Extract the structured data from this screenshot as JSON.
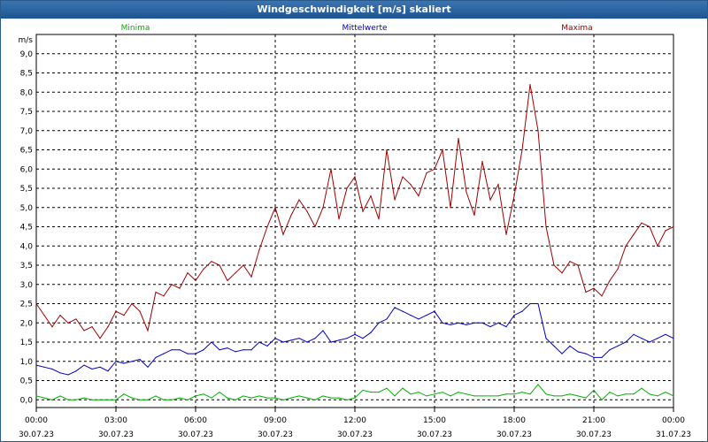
{
  "window": {
    "title": "Windgeschwindigkeit [m/s] skaliert"
  },
  "chart_data": {
    "type": "line",
    "title": "Windgeschwindigkeit [m/s] skaliert",
    "ylabel": "m/s",
    "xlabel": "",
    "ylim": [
      -0.2,
      9.5
    ],
    "xlim": [
      0,
      24
    ],
    "grid": true,
    "yticks": [
      "0,0",
      "0,5",
      "1,0",
      "1,5",
      "2,0",
      "2,5",
      "3,0",
      "3,5",
      "4,0",
      "4,5",
      "5,0",
      "5,5",
      "6,0",
      "6,5",
      "7,0",
      "7,5",
      "8,0",
      "8,5",
      "9,0"
    ],
    "ytick_values": [
      0,
      0.5,
      1,
      1.5,
      2,
      2.5,
      3,
      3.5,
      4,
      4.5,
      5,
      5.5,
      6,
      6.5,
      7,
      7.5,
      8,
      8.5,
      9
    ],
    "xticks": [
      {
        "x": 0,
        "time": "00:00",
        "date": "30.07.23"
      },
      {
        "x": 3,
        "time": "03:00",
        "date": "30.07.23"
      },
      {
        "x": 6,
        "time": "06:00",
        "date": "30.07.23"
      },
      {
        "x": 9,
        "time": "09:00",
        "date": "30.07.23"
      },
      {
        "x": 12,
        "time": "12:00",
        "date": "30.07.23"
      },
      {
        "x": 15,
        "time": "15:00",
        "date": "30.07.23"
      },
      {
        "x": 18,
        "time": "18:00",
        "date": "30.07.23"
      },
      {
        "x": 21,
        "time": "21:00",
        "date": "30.07.23"
      },
      {
        "x": 24,
        "time": "00:00",
        "date": "31.07.23"
      }
    ],
    "series": [
      {
        "name": "Minima",
        "color": "#00b000",
        "x": [
          0,
          0.3,
          0.6,
          0.9,
          1.2,
          1.5,
          1.8,
          2.1,
          2.4,
          2.7,
          3.0,
          3.3,
          3.6,
          3.9,
          4.2,
          4.5,
          4.8,
          5.1,
          5.4,
          5.7,
          6.0,
          6.3,
          6.6,
          6.9,
          7.2,
          7.5,
          7.8,
          8.1,
          8.4,
          8.7,
          9.0,
          9.3,
          9.6,
          9.9,
          10.2,
          10.5,
          10.8,
          11.1,
          11.4,
          11.7,
          12.0,
          12.3,
          12.6,
          12.9,
          13.2,
          13.5,
          13.8,
          14.1,
          14.4,
          14.7,
          15.0,
          15.3,
          15.6,
          15.9,
          16.2,
          16.5,
          16.8,
          17.1,
          17.4,
          17.7,
          18.0,
          18.3,
          18.6,
          18.9,
          19.2,
          19.5,
          19.8,
          20.1,
          20.4,
          20.7,
          21.0,
          21.3,
          21.6,
          21.9,
          22.2,
          22.5,
          22.8,
          23.1,
          23.4,
          23.7,
          24.0
        ],
        "values": [
          0.1,
          0.05,
          0.0,
          0.1,
          0.0,
          0.0,
          0.05,
          0.0,
          0.0,
          0.0,
          0.0,
          0.15,
          0.05,
          0.0,
          0.0,
          0.1,
          0.0,
          0.0,
          0.05,
          0.0,
          0.1,
          0.15,
          0.05,
          0.2,
          0.05,
          0.0,
          0.1,
          0.05,
          0.1,
          0.05,
          0.05,
          0.0,
          0.05,
          0.1,
          0.05,
          0.0,
          0.1,
          0.05,
          0.05,
          0.0,
          0.05,
          0.25,
          0.2,
          0.2,
          0.3,
          0.1,
          0.3,
          0.15,
          0.2,
          0.1,
          0.15,
          0.2,
          0.1,
          0.2,
          0.15,
          0.1,
          0.1,
          0.1,
          0.1,
          0.15,
          0.15,
          0.2,
          0.15,
          0.4,
          0.15,
          0.1,
          0.1,
          0.15,
          0.1,
          0.05,
          0.25,
          0.0,
          0.2,
          0.1,
          0.15,
          0.15,
          0.3,
          0.15,
          0.1,
          0.2,
          0.1
        ]
      },
      {
        "name": "Mittelwerte",
        "color": "#0000c0",
        "x": [
          0,
          0.3,
          0.6,
          0.9,
          1.2,
          1.5,
          1.8,
          2.1,
          2.4,
          2.7,
          3.0,
          3.3,
          3.6,
          3.9,
          4.2,
          4.5,
          4.8,
          5.1,
          5.4,
          5.7,
          6.0,
          6.3,
          6.6,
          6.9,
          7.2,
          7.5,
          7.8,
          8.1,
          8.4,
          8.7,
          9.0,
          9.3,
          9.6,
          9.9,
          10.2,
          10.5,
          10.8,
          11.1,
          11.4,
          11.7,
          12.0,
          12.3,
          12.6,
          12.9,
          13.2,
          13.5,
          13.8,
          14.1,
          14.4,
          14.7,
          15.0,
          15.3,
          15.6,
          15.9,
          16.2,
          16.5,
          16.8,
          17.1,
          17.4,
          17.7,
          18.0,
          18.3,
          18.6,
          18.9,
          19.2,
          19.5,
          19.8,
          20.1,
          20.4,
          20.7,
          21.0,
          21.3,
          21.6,
          21.9,
          22.2,
          22.5,
          22.8,
          23.1,
          23.4,
          23.7,
          24.0
        ],
        "values": [
          0.9,
          0.85,
          0.8,
          0.7,
          0.65,
          0.75,
          0.9,
          0.8,
          0.85,
          0.75,
          1.0,
          0.95,
          1.0,
          1.05,
          0.85,
          1.1,
          1.2,
          1.3,
          1.3,
          1.2,
          1.2,
          1.3,
          1.5,
          1.3,
          1.35,
          1.25,
          1.3,
          1.3,
          1.5,
          1.4,
          1.6,
          1.5,
          1.55,
          1.6,
          1.5,
          1.6,
          1.8,
          1.5,
          1.55,
          1.6,
          1.7,
          1.6,
          1.75,
          2.0,
          2.1,
          2.4,
          2.3,
          2.2,
          2.1,
          2.2,
          2.3,
          2.0,
          1.95,
          2.0,
          1.95,
          2.0,
          2.0,
          1.9,
          2.0,
          1.9,
          2.2,
          2.3,
          2.5,
          2.5,
          1.6,
          1.4,
          1.2,
          1.4,
          1.25,
          1.2,
          1.1,
          1.1,
          1.3,
          1.4,
          1.5,
          1.7,
          1.6,
          1.5,
          1.6,
          1.7,
          1.6
        ]
      },
      {
        "name": "Maxima",
        "color": "#a00000",
        "x": [
          0,
          0.3,
          0.6,
          0.9,
          1.2,
          1.5,
          1.8,
          2.1,
          2.4,
          2.7,
          3.0,
          3.3,
          3.6,
          3.9,
          4.2,
          4.5,
          4.8,
          5.1,
          5.4,
          5.7,
          6.0,
          6.3,
          6.6,
          6.9,
          7.2,
          7.5,
          7.8,
          8.1,
          8.4,
          8.7,
          9.0,
          9.3,
          9.6,
          9.9,
          10.2,
          10.5,
          10.8,
          11.1,
          11.4,
          11.7,
          12.0,
          12.3,
          12.6,
          12.9,
          13.2,
          13.5,
          13.8,
          14.1,
          14.4,
          14.7,
          15.0,
          15.3,
          15.6,
          15.9,
          16.2,
          16.5,
          16.8,
          17.1,
          17.4,
          17.7,
          18.0,
          18.3,
          18.6,
          18.9,
          19.2,
          19.5,
          19.8,
          20.1,
          20.4,
          20.7,
          21.0,
          21.3,
          21.6,
          21.9,
          22.2,
          22.5,
          22.8,
          23.1,
          23.4,
          23.7,
          24.0
        ],
        "values": [
          2.5,
          2.2,
          1.9,
          2.2,
          2.0,
          2.1,
          1.8,
          1.9,
          1.6,
          1.9,
          2.3,
          2.2,
          2.5,
          2.3,
          1.8,
          2.8,
          2.7,
          3.0,
          2.9,
          3.3,
          3.1,
          3.4,
          3.6,
          3.5,
          3.1,
          3.3,
          3.5,
          3.2,
          3.9,
          4.5,
          5.0,
          4.3,
          4.8,
          5.2,
          4.9,
          4.5,
          5.0,
          6.0,
          4.7,
          5.5,
          5.8,
          4.9,
          5.3,
          4.7,
          6.5,
          5.2,
          5.8,
          5.6,
          5.3,
          5.9,
          6.0,
          6.5,
          5.0,
          6.8,
          5.4,
          4.8,
          6.2,
          5.2,
          5.6,
          4.3,
          5.3,
          6.5,
          8.2,
          7.0,
          4.5,
          3.5,
          3.3,
          3.6,
          3.5,
          2.8,
          2.9,
          2.7,
          3.1,
          3.4,
          4.0,
          4.3,
          4.6,
          4.5,
          4.0,
          4.4,
          4.5
        ]
      }
    ]
  }
}
